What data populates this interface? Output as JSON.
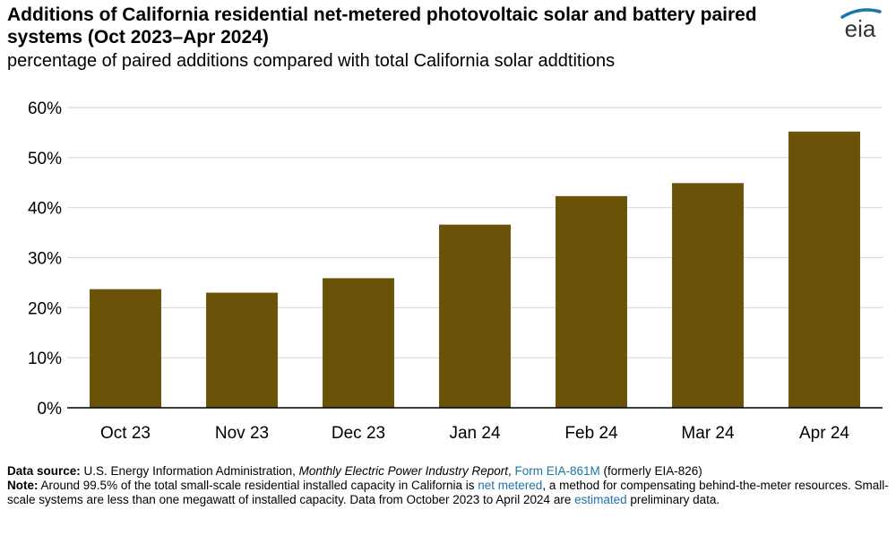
{
  "header": {
    "title": "Additions of California residential net-metered photovoltaic solar and battery paired systems (Oct 2023–Apr 2024)",
    "subtitle": "percentage of paired additions compared with total California solar addtitions",
    "logo_text": "eia"
  },
  "chart_data": {
    "type": "bar",
    "title": "Additions of California residential net-metered photovoltaic solar and battery paired systems (Oct 2023–Apr 2024)",
    "subtitle": "percentage of paired additions compared with total California solar addtitions",
    "xlabel": "",
    "ylabel": "",
    "categories": [
      "Oct 23",
      "Nov 23",
      "Dec 23",
      "Jan 24",
      "Feb 24",
      "Mar 24",
      "Apr 24"
    ],
    "values": [
      23.7,
      23.0,
      25.9,
      36.6,
      42.3,
      44.9,
      55.2
    ],
    "unit": "%",
    "ylim": [
      0,
      60
    ],
    "yticks": [
      "0%",
      "10%",
      "20%",
      "30%",
      "40%",
      "50%",
      "60%"
    ],
    "grid": true,
    "legend": "none",
    "bar_color": "#6b5209"
  },
  "footer": {
    "source_label": "Data source:",
    "source_text_1": " U.S. Energy Information Administration, ",
    "source_report": "Monthly Electric Power Industry Report",
    "source_sep": ", ",
    "source_form_link": "Form EIA-861M",
    "source_text_2": " (formerly EIA-826)",
    "note_label": "Note:",
    "note_text_1": " Around 99.5% of the total small-scale residential installed capacity in California is ",
    "note_link_1": "net metered",
    "note_text_2": ", a method for compensating behind-the-meter resources. Small-scale systems are less than one megawatt of installed capacity. Data from October 2023 to April 2024 are ",
    "note_link_2": "estimated",
    "note_text_3": " preliminary data."
  },
  "colors": {
    "bar": "#6b5209",
    "grid": "#d9d9d9",
    "axis": "#000000",
    "link": "#1a75a8",
    "logo": "#1a75a8"
  }
}
